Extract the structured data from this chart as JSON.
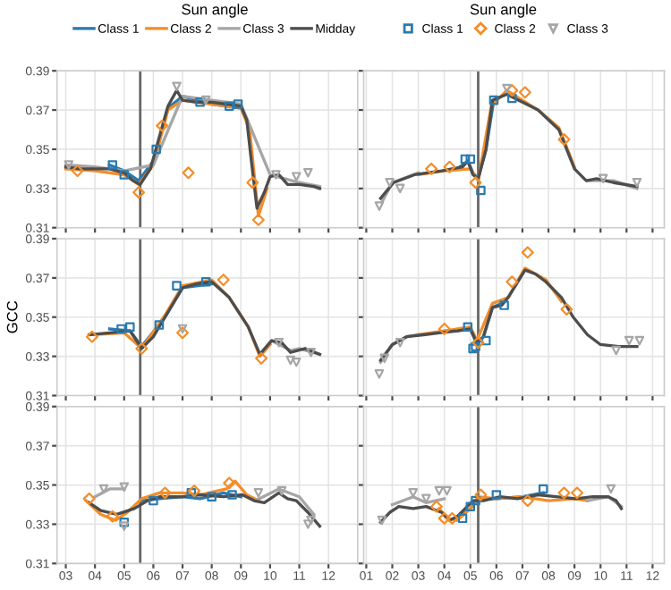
{
  "chart_data": [
    {
      "type": "line",
      "legend": "top",
      "legend_title": "Sun angle",
      "xlim": [
        2.7,
        13.0
      ],
      "xticks": [
        {
          "value": 3,
          "label": null
        },
        {
          "value": 4,
          "label": null
        },
        {
          "value": 5,
          "label": null
        },
        {
          "value": 6,
          "label": null
        },
        {
          "value": 7,
          "label": null
        },
        {
          "value": 8,
          "label": null
        },
        {
          "value": 9,
          "label": null
        },
        {
          "value": 10,
          "label": null
        },
        {
          "value": 11,
          "label": null
        },
        {
          "value": 12,
          "label": null
        }
      ],
      "ylim": [
        0.31,
        0.39
      ],
      "yticks": [
        0.31,
        0.33,
        0.35,
        0.37,
        0.39
      ],
      "grid": true,
      "tick_labels": "y",
      "ref_lines": [
        {
          "axis": "x",
          "value": 5.55,
          "color": "#666666"
        }
      ],
      "series": [
        {
          "name": "Class 1",
          "color": "#2a7ab0",
          "x": [
            4.5,
            5.0,
            5.5,
            6.0,
            6.5,
            7.0,
            8.0,
            9.0
          ],
          "values": [
            0.342,
            0.339,
            0.334,
            0.344,
            0.371,
            0.377,
            0.373,
            0.371
          ]
        },
        {
          "name": "Class 2",
          "color": "#f28e2b",
          "x": [
            3.0,
            4.0,
            5.0,
            5.5,
            6.0,
            6.5,
            7.0,
            8.0,
            9.0,
            9.3,
            9.6,
            9.9
          ],
          "values": [
            0.34,
            0.339,
            0.337,
            0.332,
            0.342,
            0.37,
            0.375,
            0.373,
            0.371,
            0.36,
            0.316,
            0.33
          ]
        },
        {
          "name": "Class 3",
          "color": "#a6a6a6",
          "x": [
            3.0,
            4.0,
            5.0,
            6.0,
            7.0,
            8.0,
            9.0,
            10.0,
            10.5,
            11.0,
            11.7
          ],
          "values": [
            0.342,
            0.341,
            0.339,
            0.342,
            0.377,
            0.375,
            0.373,
            0.337,
            0.335,
            0.333,
            0.331
          ]
        },
        {
          "name": "Midday",
          "color": "#4d4d4d",
          "x": [
            3.0,
            3.5,
            4.0,
            4.5,
            5.0,
            5.3,
            5.55,
            5.9,
            6.2,
            6.5,
            6.8,
            7.0,
            7.5,
            8.0,
            8.5,
            9.0,
            9.2,
            9.35,
            9.55,
            9.8,
            10.0,
            10.3,
            10.6,
            11.0,
            11.5,
            11.7
          ],
          "values": [
            0.341,
            0.34,
            0.34,
            0.34,
            0.338,
            0.334,
            0.332,
            0.34,
            0.356,
            0.372,
            0.38,
            0.375,
            0.374,
            0.374,
            0.373,
            0.372,
            0.365,
            0.345,
            0.32,
            0.328,
            0.336,
            0.337,
            0.332,
            0.332,
            0.331,
            0.33
          ]
        },
        {
          "name": "Class 1",
          "type": "scatter",
          "marker": "square",
          "color": "#2a7ab0",
          "x": [
            4.6,
            5.0,
            6.1,
            7.6,
            8.6,
            8.9
          ],
          "values": [
            0.342,
            0.337,
            0.35,
            0.374,
            0.372,
            0.373
          ]
        },
        {
          "name": "Class 2",
          "type": "scatter",
          "marker": "diamond",
          "color": "#f28e2b",
          "x": [
            3.4,
            5.5,
            6.3,
            7.2,
            9.4,
            9.6
          ],
          "values": [
            0.339,
            0.328,
            0.362,
            0.338,
            0.333,
            0.314
          ]
        },
        {
          "name": "Class 3",
          "type": "scatter",
          "marker": "triangle",
          "color": "#a6a6a6",
          "x": [
            3.1,
            6.8,
            7.8,
            10.2,
            10.9,
            11.3
          ],
          "values": [
            0.342,
            0.382,
            0.375,
            0.337,
            0.336,
            0.338
          ]
        }
      ]
    },
    {
      "type": "line",
      "xlim": [
        0.9,
        12.45
      ],
      "xticks": [
        {
          "value": 1,
          "label": null
        },
        {
          "value": 2,
          "label": null
        },
        {
          "value": 3,
          "label": null
        },
        {
          "value": 4,
          "label": null
        },
        {
          "value": 5,
          "label": null
        },
        {
          "value": 6,
          "label": null
        },
        {
          "value": 7,
          "label": null
        },
        {
          "value": 8,
          "label": null
        },
        {
          "value": 9,
          "label": null
        },
        {
          "value": 10,
          "label": null
        },
        {
          "value": 11,
          "label": null
        },
        {
          "value": 12,
          "label": null
        }
      ],
      "ylim": [
        0.31,
        0.39
      ],
      "yticks": [
        {
          "value": 0.31,
          "label": null
        },
        {
          "value": 0.33,
          "label": null
        },
        {
          "value": 0.35,
          "label": null
        },
        {
          "value": 0.37,
          "label": null
        },
        {
          "value": 0.39,
          "label": null
        }
      ],
      "grid": true,
      "tick_labels": false,
      "ref_lines": [
        {
          "axis": "x",
          "value": 5.3,
          "color": "#666666"
        }
      ],
      "series": [
        {
          "color": "#2a7ab0",
          "x": [
            4.6,
            4.9,
            5.1,
            5.3,
            5.6,
            5.9
          ],
          "values": [
            0.341,
            0.344,
            0.338,
            0.335,
            0.35,
            0.375
          ]
        },
        {
          "color": "#f28e2b",
          "x": [
            3.0,
            4.0,
            5.0,
            5.3,
            5.8,
            6.4,
            7.0,
            7.6,
            8.4,
            9.0
          ],
          "values": [
            0.337,
            0.339,
            0.34,
            0.334,
            0.372,
            0.38,
            0.375,
            0.37,
            0.361,
            0.341
          ]
        },
        {
          "color": "#a6a6a6",
          "x": [
            1.6,
            2.0,
            3.0
          ],
          "values": [
            0.323,
            0.333,
            0.338
          ]
        },
        {
          "color": "#a6a6a6",
          "x": [
            9.5,
            10.5,
            11.4
          ],
          "values": [
            0.334,
            0.334,
            0.33
          ]
        },
        {
          "color": "#4d4d4d",
          "x": [
            1.55,
            2.05,
            2.85,
            3.9,
            4.7,
            4.9,
            5.1,
            5.3,
            5.6,
            5.85,
            6.4,
            7.0,
            7.6,
            8.4,
            9.0,
            9.45,
            9.85,
            10.5,
            11.4
          ],
          "values": [
            0.325,
            0.333,
            0.337,
            0.339,
            0.341,
            0.344,
            0.337,
            0.335,
            0.35,
            0.375,
            0.378,
            0.374,
            0.37,
            0.36,
            0.34,
            0.334,
            0.335,
            0.333,
            0.331
          ]
        },
        {
          "type": "scatter",
          "marker": "square",
          "color": "#2a7ab0",
          "x": [
            4.8,
            5.0,
            5.4,
            5.9,
            6.6
          ],
          "values": [
            0.345,
            0.345,
            0.329,
            0.375,
            0.376
          ]
        },
        {
          "type": "scatter",
          "marker": "diamond",
          "color": "#f28e2b",
          "x": [
            3.5,
            4.2,
            5.2,
            6.6,
            7.1,
            8.6
          ],
          "values": [
            0.34,
            0.341,
            0.333,
            0.38,
            0.379,
            0.355
          ]
        },
        {
          "type": "scatter",
          "marker": "triangle",
          "color": "#a6a6a6",
          "x": [
            1.5,
            1.9,
            2.3,
            6.4,
            10.1,
            11.4
          ],
          "values": [
            0.321,
            0.333,
            0.33,
            0.381,
            0.335,
            0.333
          ]
        }
      ]
    },
    {
      "type": "line",
      "ylabel": "GCC",
      "xlim": [
        2.7,
        13.0
      ],
      "xticks": [
        {
          "value": 3,
          "label": null
        },
        {
          "value": 4,
          "label": null
        },
        {
          "value": 5,
          "label": null
        },
        {
          "value": 6,
          "label": null
        },
        {
          "value": 7,
          "label": null
        },
        {
          "value": 8,
          "label": null
        },
        {
          "value": 9,
          "label": null
        },
        {
          "value": 10,
          "label": null
        },
        {
          "value": 11,
          "label": null
        },
        {
          "value": 12,
          "label": null
        }
      ],
      "ylim": [
        0.31,
        0.39
      ],
      "yticks": [
        0.31,
        0.33,
        0.35,
        0.37,
        0.39
      ],
      "grid": true,
      "tick_labels": "y",
      "ref_lines": [
        {
          "axis": "x",
          "value": 5.55,
          "color": "#666666"
        }
      ],
      "series": [
        {
          "color": "#2a7ab0",
          "x": [
            4.5,
            5.2,
            5.6,
            6.4,
            7.0,
            8.0
          ],
          "values": [
            0.344,
            0.343,
            0.335,
            0.35,
            0.365,
            0.367
          ]
        },
        {
          "color": "#f28e2b",
          "x": [
            3.8,
            5.0,
            5.6,
            6.4,
            7.0,
            8.0,
            8.6,
            9.25,
            9.65,
            10.0
          ],
          "values": [
            0.341,
            0.342,
            0.334,
            0.351,
            0.366,
            0.369,
            0.36,
            0.345,
            0.33,
            0.336
          ]
        },
        {
          "color": "#a6a6a6",
          "x": [
            9.7,
            10.05,
            10.7,
            11.0,
            11.7
          ],
          "values": [
            0.332,
            0.338,
            0.333,
            0.334,
            0.331
          ]
        },
        {
          "color": "#4d4d4d",
          "x": [
            3.8,
            4.5,
            5.2,
            5.6,
            6.0,
            6.4,
            7.0,
            7.5,
            8.0,
            8.6,
            9.25,
            9.65,
            10.05,
            10.4,
            10.7,
            11.2,
            11.7
          ],
          "values": [
            0.341,
            0.342,
            0.343,
            0.334,
            0.34,
            0.35,
            0.365,
            0.367,
            0.368,
            0.36,
            0.345,
            0.331,
            0.338,
            0.337,
            0.332,
            0.334,
            0.331
          ]
        },
        {
          "type": "scatter",
          "marker": "square",
          "color": "#2a7ab0",
          "x": [
            4.9,
            5.2,
            6.2,
            6.8,
            7.8
          ],
          "values": [
            0.344,
            0.345,
            0.346,
            0.366,
            0.368
          ]
        },
        {
          "type": "scatter",
          "marker": "diamond",
          "color": "#f28e2b",
          "x": [
            3.9,
            5.6,
            7.0,
            8.4,
            9.7
          ],
          "values": [
            0.34,
            0.334,
            0.342,
            0.369,
            0.329
          ]
        },
        {
          "type": "scatter",
          "marker": "triangle",
          "color": "#a6a6a6",
          "x": [
            7.0,
            10.3,
            10.7,
            10.9,
            11.4
          ],
          "values": [
            0.344,
            0.337,
            0.328,
            0.327,
            0.332
          ]
        }
      ]
    },
    {
      "type": "line",
      "xlim": [
        0.9,
        12.45
      ],
      "xticks": [
        {
          "value": 1,
          "label": null
        },
        {
          "value": 2,
          "label": null
        },
        {
          "value": 3,
          "label": null
        },
        {
          "value": 4,
          "label": null
        },
        {
          "value": 5,
          "label": null
        },
        {
          "value": 6,
          "label": null
        },
        {
          "value": 7,
          "label": null
        },
        {
          "value": 8,
          "label": null
        },
        {
          "value": 9,
          "label": null
        },
        {
          "value": 10,
          "label": null
        },
        {
          "value": 11,
          "label": null
        },
        {
          "value": 12,
          "label": null
        }
      ],
      "ylim": [
        0.31,
        0.39
      ],
      "yticks": [
        {
          "value": 0.31,
          "label": null
        },
        {
          "value": 0.33,
          "label": null
        },
        {
          "value": 0.35,
          "label": null
        },
        {
          "value": 0.37,
          "label": null
        },
        {
          "value": 0.39,
          "label": null
        }
      ],
      "grid": true,
      "tick_labels": false,
      "ref_lines": [
        {
          "axis": "x",
          "value": 5.3,
          "color": "#666666"
        }
      ],
      "series": [
        {
          "color": "#2a7ab0",
          "x": [
            4.5,
            5.0,
            5.25,
            5.5,
            5.85,
            6.2
          ],
          "values": [
            0.343,
            0.344,
            0.336,
            0.34,
            0.355,
            0.357
          ]
        },
        {
          "color": "#f28e2b",
          "x": [
            3.0,
            4.0,
            5.0,
            5.25,
            5.85,
            6.45,
            7.1,
            7.9,
            8.5
          ],
          "values": [
            0.341,
            0.343,
            0.345,
            0.338,
            0.357,
            0.36,
            0.375,
            0.369,
            0.358
          ]
        },
        {
          "color": "#a6a6a6",
          "x": [
            1.55,
            2.0,
            2.55,
            3.0
          ],
          "values": [
            0.327,
            0.336,
            0.34,
            0.341
          ]
        },
        {
          "color": "#4d4d4d",
          "x": [
            1.55,
            2.0,
            2.55,
            3.2,
            3.8,
            4.5,
            5.0,
            5.25,
            5.5,
            5.85,
            6.2,
            6.45,
            7.1,
            7.5,
            7.9,
            8.5,
            8.95,
            9.5,
            10.0,
            10.7,
            11.4
          ],
          "values": [
            0.328,
            0.336,
            0.34,
            0.341,
            0.342,
            0.343,
            0.344,
            0.337,
            0.34,
            0.355,
            0.356,
            0.36,
            0.374,
            0.372,
            0.368,
            0.36,
            0.35,
            0.341,
            0.336,
            0.335,
            0.335
          ]
        },
        {
          "type": "scatter",
          "marker": "square",
          "color": "#2a7ab0",
          "x": [
            4.9,
            5.1,
            5.2,
            5.6,
            6.3
          ],
          "values": [
            0.345,
            0.334,
            0.335,
            0.338,
            0.356
          ]
        },
        {
          "type": "scatter",
          "marker": "diamond",
          "color": "#f28e2b",
          "x": [
            4.0,
            5.3,
            6.6,
            7.2,
            8.7
          ],
          "values": [
            0.344,
            0.337,
            0.368,
            0.383,
            0.354
          ]
        },
        {
          "type": "scatter",
          "marker": "triangle",
          "color": "#a6a6a6",
          "x": [
            1.5,
            1.7,
            2.3,
            10.6,
            11.1,
            11.5
          ],
          "values": [
            0.321,
            0.329,
            0.337,
            0.333,
            0.338,
            0.338
          ]
        }
      ]
    },
    {
      "type": "line",
      "xlim": [
        2.7,
        13.0
      ],
      "xticks": [
        {
          "value": 3,
          "label": "03"
        },
        {
          "value": 4,
          "label": "04"
        },
        {
          "value": 5,
          "label": "05"
        },
        {
          "value": 6,
          "label": "06"
        },
        {
          "value": 7,
          "label": "07"
        },
        {
          "value": 8,
          "label": "08"
        },
        {
          "value": 9,
          "label": "09"
        },
        {
          "value": 10,
          "label": "10"
        },
        {
          "value": 11,
          "label": "11"
        },
        {
          "value": 12,
          "label": "12"
        }
      ],
      "ylim": [
        0.31,
        0.39
      ],
      "yticks": [
        0.31,
        0.33,
        0.35,
        0.37,
        0.39
      ],
      "grid": true,
      "ref_lines": [
        {
          "axis": "x",
          "value": 5.55,
          "color": "#666666"
        }
      ],
      "series": [
        {
          "color": "#2a7ab0",
          "x": [
            5.6,
            6.2,
            7.0,
            7.6,
            8.4,
            9.0
          ],
          "values": [
            0.342,
            0.343,
            0.344,
            0.343,
            0.346,
            0.344
          ]
        },
        {
          "color": "#f28e2b",
          "x": [
            3.7,
            4.2,
            4.7,
            5.1,
            5.6,
            6.2,
            7.0,
            7.6,
            8.5,
            8.8,
            9.2,
            9.6
          ],
          "values": [
            0.342,
            0.335,
            0.332,
            0.336,
            0.343,
            0.346,
            0.346,
            0.345,
            0.348,
            0.352,
            0.345,
            0.342
          ]
        },
        {
          "color": "#a6a6a6",
          "x": [
            4.0,
            4.5,
            5.0
          ],
          "values": [
            0.344,
            0.348,
            0.348
          ]
        },
        {
          "color": "#a6a6a6",
          "x": [
            9.5,
            10.3,
            11.0,
            11.5
          ],
          "values": [
            0.342,
            0.348,
            0.344,
            0.335
          ]
        },
        {
          "color": "#4d4d4d",
          "x": [
            3.8,
            4.2,
            4.75,
            5.35,
            5.8,
            6.2,
            7.0,
            7.6,
            8.4,
            9.05,
            9.45,
            9.8,
            10.3,
            10.6,
            10.9,
            11.3,
            11.7
          ],
          "values": [
            0.341,
            0.337,
            0.335,
            0.338,
            0.342,
            0.344,
            0.344,
            0.345,
            0.344,
            0.345,
            0.342,
            0.341,
            0.346,
            0.343,
            0.342,
            0.336,
            0.329
          ]
        },
        {
          "type": "scatter",
          "marker": "square",
          "color": "#2a7ab0",
          "x": [
            5.0,
            6.0,
            7.3,
            8.0,
            8.7
          ],
          "values": [
            0.331,
            0.342,
            0.346,
            0.344,
            0.345
          ]
        },
        {
          "type": "scatter",
          "marker": "diamond",
          "color": "#f28e2b",
          "x": [
            3.8,
            4.6,
            6.4,
            7.4,
            8.6
          ],
          "values": [
            0.343,
            0.334,
            0.346,
            0.347,
            0.351
          ]
        },
        {
          "type": "scatter",
          "marker": "triangle",
          "color": "#a6a6a6",
          "x": [
            4.3,
            5.0,
            5.0,
            9.6,
            10.4,
            11.3,
            11.4
          ],
          "values": [
            0.348,
            0.349,
            0.329,
            0.346,
            0.347,
            0.33,
            0.332
          ]
        }
      ]
    },
    {
      "type": "line",
      "xlim": [
        0.9,
        12.45
      ],
      "xticks": [
        {
          "value": 1,
          "label": "01"
        },
        {
          "value": 2,
          "label": "02"
        },
        {
          "value": 3,
          "label": "03"
        },
        {
          "value": 4,
          "label": "04"
        },
        {
          "value": 5,
          "label": "05"
        },
        {
          "value": 6,
          "label": "06"
        },
        {
          "value": 7,
          "label": "07"
        },
        {
          "value": 8,
          "label": "08"
        },
        {
          "value": 9,
          "label": "09"
        },
        {
          "value": 10,
          "label": "10"
        },
        {
          "value": 11,
          "label": "11"
        },
        {
          "value": 12,
          "label": "12"
        }
      ],
      "ylim": [
        0.31,
        0.39
      ],
      "yticks": [
        {
          "value": 0.31,
          "label": null
        },
        {
          "value": 0.33,
          "label": null
        },
        {
          "value": 0.35,
          "label": null
        },
        {
          "value": 0.37,
          "label": null
        },
        {
          "value": 0.39,
          "label": null
        }
      ],
      "grid": true,
      "tick_labels": "x",
      "ref_lines": [
        {
          "axis": "x",
          "value": 5.3,
          "color": "#666666"
        }
      ],
      "series": [
        {
          "color": "#2a7ab0",
          "x": [
            4.5,
            4.8,
            5.0,
            5.3,
            6.0,
            7.0,
            7.8
          ],
          "values": [
            0.334,
            0.336,
            0.338,
            0.343,
            0.343,
            0.344,
            0.346
          ]
        },
        {
          "color": "#f28e2b",
          "x": [
            3.8,
            4.1,
            4.5,
            5.0,
            5.3,
            6.0,
            7.0,
            8.0,
            9.0,
            9.5
          ],
          "values": [
            0.338,
            0.333,
            0.332,
            0.338,
            0.344,
            0.343,
            0.344,
            0.342,
            0.343,
            0.342
          ]
        },
        {
          "color": "#a6a6a6",
          "x": [
            2.0,
            2.8,
            3.3,
            4.0
          ],
          "values": [
            0.34,
            0.344,
            0.341,
            0.343
          ]
        },
        {
          "color": "#a6a6a6",
          "x": [
            9.5,
            10.3,
            10.8
          ],
          "values": [
            0.342,
            0.344,
            0.339
          ]
        },
        {
          "color": "#4d4d4d",
          "x": [
            1.55,
            1.9,
            2.25,
            2.8,
            3.3,
            3.9,
            4.2,
            4.5,
            4.8,
            5.1,
            5.5,
            6.15,
            6.8,
            7.6,
            8.3,
            9.05,
            9.7,
            10.3,
            10.6,
            10.8
          ],
          "values": [
            0.331,
            0.336,
            0.339,
            0.338,
            0.339,
            0.336,
            0.332,
            0.334,
            0.338,
            0.342,
            0.342,
            0.344,
            0.343,
            0.345,
            0.344,
            0.343,
            0.344,
            0.344,
            0.342,
            0.338
          ]
        },
        {
          "type": "scatter",
          "marker": "square",
          "color": "#2a7ab0",
          "x": [
            4.7,
            5.0,
            5.2,
            6.0,
            7.8
          ],
          "values": [
            0.333,
            0.339,
            0.342,
            0.345,
            0.348
          ]
        },
        {
          "type": "scatter",
          "marker": "diamond",
          "color": "#f28e2b",
          "x": [
            3.7,
            4.0,
            4.3,
            5.4,
            7.2,
            8.6,
            9.1
          ],
          "values": [
            0.339,
            0.333,
            0.333,
            0.345,
            0.342,
            0.346,
            0.346
          ]
        },
        {
          "type": "scatter",
          "marker": "triangle",
          "color": "#a6a6a6",
          "x": [
            1.6,
            2.8,
            3.3,
            3.8,
            4.1,
            10.4
          ],
          "values": [
            0.332,
            0.346,
            0.343,
            0.347,
            0.347,
            0.348
          ]
        }
      ]
    }
  ]
}
